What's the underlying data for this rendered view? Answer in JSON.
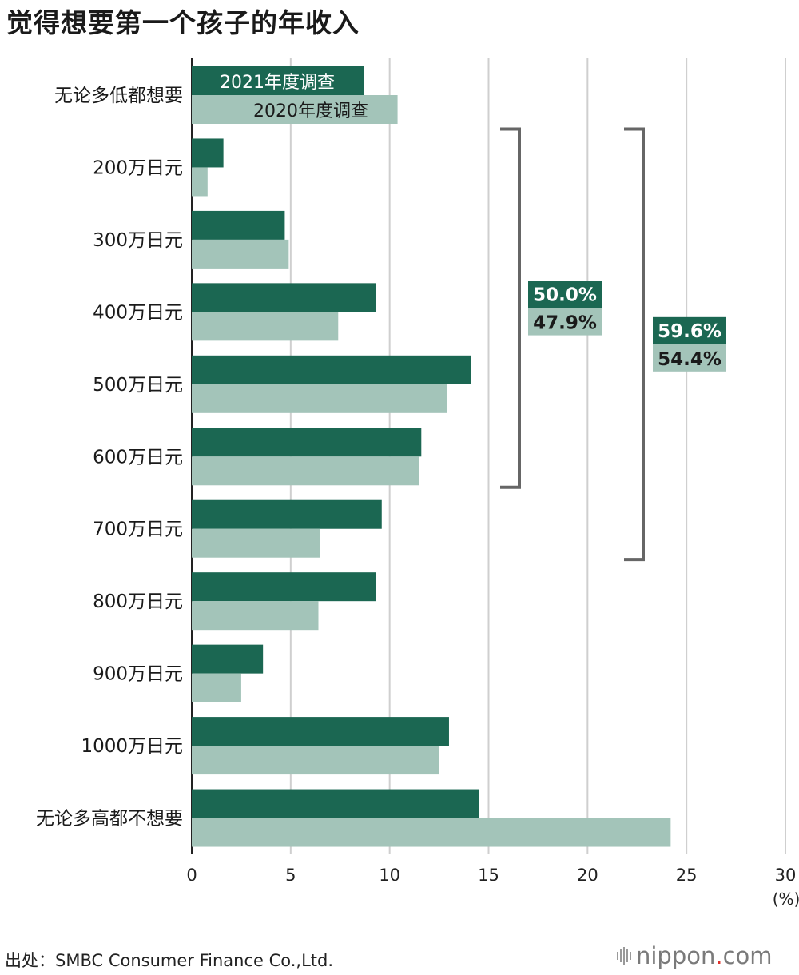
{
  "title": "觉得想要第一个孩子的年收入",
  "source": "出处：SMBC Consumer Finance Co.,Ltd.",
  "logo": {
    "name": "nippon",
    "dot": ".",
    "suffix": "com"
  },
  "colors": {
    "series_2021": "#1b6752",
    "series_2020": "#a3c4b9",
    "grid": "#cfcfcf",
    "bracket": "#666666",
    "axis": "#222222"
  },
  "chart_data": {
    "type": "bar",
    "orientation": "horizontal",
    "categories": [
      "无论多低都想要",
      "200万日元",
      "300万日元",
      "400万日元",
      "500万日元",
      "600万日元",
      "700万日元",
      "800万日元",
      "900万日元",
      "1000万日元",
      "无论多高都不想要"
    ],
    "series": [
      {
        "name": "2021年度调查",
        "values": [
          8.7,
          1.6,
          4.7,
          9.3,
          14.1,
          11.6,
          9.6,
          9.3,
          3.6,
          13.0,
          14.5
        ]
      },
      {
        "name": "2020年度调查",
        "values": [
          10.4,
          0.8,
          4.9,
          7.4,
          12.9,
          11.5,
          6.5,
          6.4,
          2.5,
          12.5,
          24.2
        ]
      }
    ],
    "xlim": [
      0,
      30
    ],
    "xticks": [
      "0",
      "5",
      "10",
      "15",
      "20",
      "25",
      "30"
    ],
    "xunit": "(%)",
    "grid": true,
    "legend_position": "inside first category bars",
    "annotations": [
      {
        "range": [
          "200万日元",
          "600万日元"
        ],
        "labels": [
          "50.0%",
          "47.9%"
        ]
      },
      {
        "range": [
          "200万日元",
          "700万日元"
        ],
        "labels": [
          "59.6%",
          "54.4%"
        ]
      }
    ]
  }
}
